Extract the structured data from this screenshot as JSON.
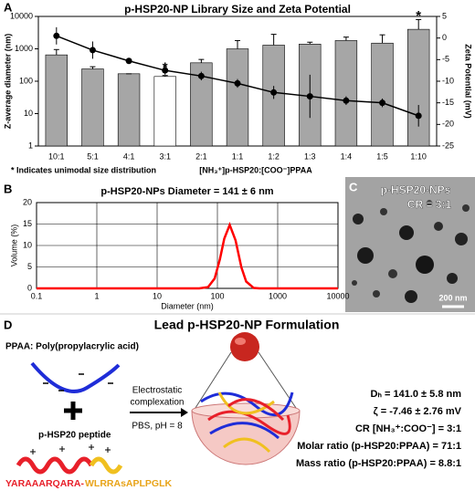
{
  "panel_labels": [
    "A",
    "B",
    "C",
    "D"
  ],
  "chart_data": [
    {
      "type": "bar",
      "title": "p-HSP20-NP Library Size and Zeta Potential",
      "x_label": "[NH₃⁺]p-HSP20:[COO⁻]PPAA",
      "y_label": "Z-average diameter (nm)",
      "y2_label": "Zeta Potential (mV)",
      "categories": [
        "10:1",
        "5:1",
        "4:1",
        "3:1",
        "2:1",
        "1:1",
        "1:2",
        "1:3",
        "1:4",
        "1:5",
        "1:10"
      ],
      "log_y": true,
      "ylim": [
        1,
        10000
      ],
      "yticks": [
        1,
        10,
        100,
        1000,
        10000
      ],
      "y2lim": [
        -25,
        5
      ],
      "y2ticks": [
        5,
        0,
        -5,
        -10,
        -15,
        -20,
        -25
      ],
      "grid": false,
      "series": [
        {
          "type": "bar",
          "color": "#a6a6a6",
          "colors": [
            "#a6a6a6",
            "#a6a6a6",
            "#a6a6a6",
            "#ffffff",
            "#a6a6a6",
            "#a6a6a6",
            "#a6a6a6",
            "#a6a6a6",
            "#a6a6a6",
            "#a6a6a6",
            "#a6a6a6"
          ],
          "values": [
            650,
            240,
            170,
            140,
            370,
            1000,
            1300,
            1400,
            1800,
            1500,
            4000
          ],
          "errors": [
            300,
            40,
            0,
            10,
            100,
            800,
            1500,
            200,
            500,
            1200,
            4000
          ]
        },
        {
          "type": "line",
          "axis": "y2",
          "color": "#000000",
          "values": [
            0.5,
            -2.8,
            -5.3,
            -7.5,
            -8.8,
            -10.5,
            -12.6,
            -13.5,
            -14.5,
            -15,
            -18
          ],
          "errors": [
            2,
            2,
            0.5,
            1,
            1,
            1,
            1.5,
            5,
            1,
            1,
            2.5
          ]
        }
      ],
      "annotations": [
        {
          "text": "*",
          "category": "3:1"
        },
        {
          "text": "*",
          "category": "1:10"
        }
      ],
      "note": "* Indicates unimodal size distribution"
    },
    {
      "type": "line",
      "title": "p-HSP20-NPs Diameter = 141 ± 6 nm",
      "x_label": "Diameter (nm)",
      "y_label": "Volume (%)",
      "log_x": true,
      "xlim": [
        0.1,
        10000
      ],
      "xticks": [
        0.1,
        1,
        10,
        100,
        1000,
        10000
      ],
      "ylim": [
        0,
        20
      ],
      "yticks": [
        0,
        5,
        10,
        15,
        20
      ],
      "grid": true,
      "x": [
        0.1,
        1,
        10,
        50,
        70,
        90,
        110,
        130,
        160,
        200,
        250,
        300,
        400,
        500,
        1000,
        10000
      ],
      "series": [
        {
          "color": "#ff0000",
          "values": [
            0,
            0,
            0,
            0,
            0.3,
            2.3,
            6.8,
            11.6,
            14.8,
            11.2,
            4.9,
            1.6,
            0.1,
            0,
            0,
            0
          ]
        }
      ]
    }
  ],
  "micrograph": {
    "title": "p-HSP20-NPs",
    "subtitle": "CR = 3:1",
    "scale_bar": "200 nm"
  },
  "formulation": {
    "title": "Lead p-HSP20-NP Formulation",
    "polymer_label": "PPAA: Poly(propylacrylic acid)",
    "peptide_label": "p-HSP20 peptide",
    "arrow_top": [
      "Electrostatic",
      "complexation"
    ],
    "arrow_bottom": "PBS, pH = 8",
    "sequence": [
      "YARAAARQARA-",
      "WLRRAsAPLPGLK"
    ],
    "properties": [
      "Dₕ = 141.0 ± 5.8 nm",
      "ζ = -7.46 ± 2.76 mV",
      "CR [NH₃⁺:COO⁻] = 3:1",
      "Molar ratio (p-HSP20:PPAA) = 71:1",
      "Mass ratio (p-HSP20:PPAA) = 8.8:1"
    ]
  }
}
